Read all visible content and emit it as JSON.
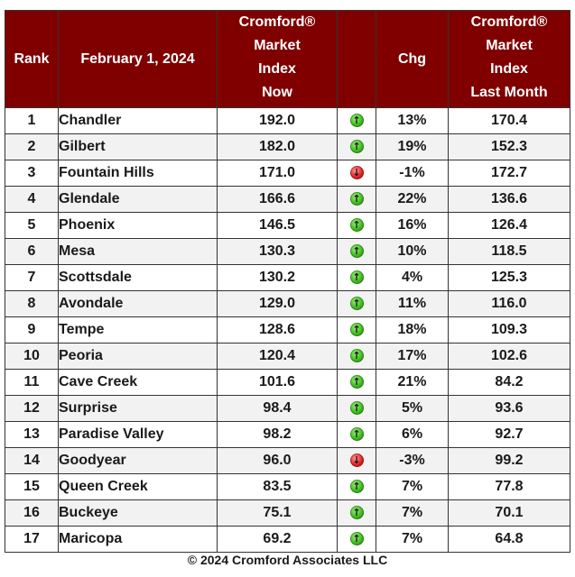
{
  "header": {
    "rank": "Rank",
    "date": "February 1, 2024",
    "index_now": [
      "Cromford®",
      "Market",
      "Index",
      "Now"
    ],
    "chg": "Chg",
    "index_last": [
      "Cromford®",
      "Market",
      "Index",
      "Last Month"
    ]
  },
  "rows": [
    {
      "rank": "1",
      "city": "Chandler",
      "now": "192.0",
      "dir": "up",
      "chg": "13%",
      "last": "170.4"
    },
    {
      "rank": "2",
      "city": "Gilbert",
      "now": "182.0",
      "dir": "up",
      "chg": "19%",
      "last": "152.3"
    },
    {
      "rank": "3",
      "city": "Fountain Hills",
      "now": "171.0",
      "dir": "down",
      "chg": "-1%",
      "last": "172.7"
    },
    {
      "rank": "4",
      "city": "Glendale",
      "now": "166.6",
      "dir": "up",
      "chg": "22%",
      "last": "136.6"
    },
    {
      "rank": "5",
      "city": "Phoenix",
      "now": "146.5",
      "dir": "up",
      "chg": "16%",
      "last": "126.4"
    },
    {
      "rank": "6",
      "city": "Mesa",
      "now": "130.3",
      "dir": "up",
      "chg": "10%",
      "last": "118.5"
    },
    {
      "rank": "7",
      "city": "Scottsdale",
      "now": "130.2",
      "dir": "up",
      "chg": "4%",
      "last": "125.3"
    },
    {
      "rank": "8",
      "city": "Avondale",
      "now": "129.0",
      "dir": "up",
      "chg": "11%",
      "last": "116.0"
    },
    {
      "rank": "9",
      "city": "Tempe",
      "now": "128.6",
      "dir": "up",
      "chg": "18%",
      "last": "109.3"
    },
    {
      "rank": "10",
      "city": "Peoria",
      "now": "120.4",
      "dir": "up",
      "chg": "17%",
      "last": "102.6"
    },
    {
      "rank": "11",
      "city": "Cave Creek",
      "now": "101.6",
      "dir": "up",
      "chg": "21%",
      "last": "84.2"
    },
    {
      "rank": "12",
      "city": "Surprise",
      "now": "98.4",
      "dir": "up",
      "chg": "5%",
      "last": "93.6"
    },
    {
      "rank": "13",
      "city": "Paradise Valley",
      "now": "98.2",
      "dir": "up",
      "chg": "6%",
      "last": "92.7"
    },
    {
      "rank": "14",
      "city": "Goodyear",
      "now": "96.0",
      "dir": "down",
      "chg": "-3%",
      "last": "99.2"
    },
    {
      "rank": "15",
      "city": "Queen Creek",
      "now": "83.5",
      "dir": "up",
      "chg": "7%",
      "last": "77.8"
    },
    {
      "rank": "16",
      "city": "Buckeye",
      "now": "75.1",
      "dir": "up",
      "chg": "7%",
      "last": "70.1"
    },
    {
      "rank": "17",
      "city": "Maricopa",
      "now": "69.2",
      "dir": "up",
      "chg": "7%",
      "last": "64.8"
    }
  ],
  "icons": {
    "up": "up-arrow-icon",
    "down": "down-arrow-icon"
  },
  "colors": {
    "header_bg": "#800000",
    "up": "#3cb81c",
    "down": "#e02020"
  },
  "footer": "© 2024 Cromford Associates LLC"
}
